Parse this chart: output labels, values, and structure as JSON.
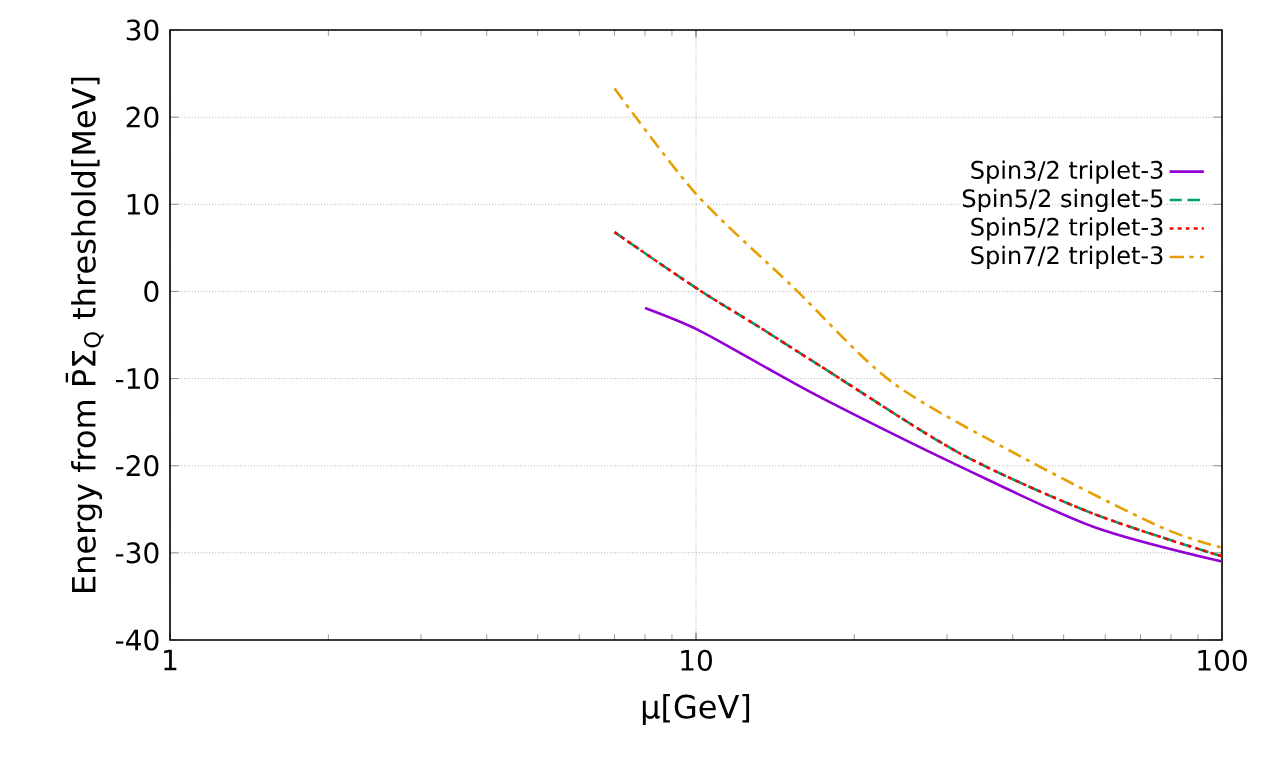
{
  "chart_data": {
    "type": "line",
    "xlabel": "μ[GeV]",
    "ylabel": "Energy from P̄Σ$_{Q}$ threshold[MeV]",
    "log": "x",
    "xlim": [
      1,
      100
    ],
    "xticks": [
      1,
      10,
      100
    ],
    "ylim": [
      -40,
      30
    ],
    "yticks": [
      -40,
      -30,
      -20,
      -10,
      0,
      10,
      20,
      30
    ],
    "grid": true,
    "legend": "right",
    "marker": "none",
    "series": [
      {
        "name": "Spin3/2 triplet-3",
        "color": "#9400d3",
        "line_style": "solid",
        "x": [
          8,
          10,
          13.2,
          17.7,
          31.8,
          56.9,
          100
        ],
        "values": [
          -1.9,
          -4.3,
          -8.3,
          -12.5,
          -20.1,
          -27,
          -31
        ]
      },
      {
        "name": "Spin5/2 singlet-5",
        "color": "#009e73",
        "line_style": "dashed",
        "x": [
          7,
          10,
          13.2,
          17.7,
          31.8,
          56.9,
          100
        ],
        "values": [
          6.8,
          0.4,
          -4.1,
          -9,
          -18.6,
          -25.5,
          -30.4
        ]
      },
      {
        "name": "Spin5/2 triplet-3",
        "color": "#ff0000",
        "line_style": "dotted",
        "x": [
          7,
          10,
          13.2,
          17.7,
          31.8,
          56.9,
          100
        ],
        "values": [
          6.8,
          0.4,
          -4.1,
          -9,
          -18.6,
          -25.5,
          -30.4
        ]
      },
      {
        "name": "Spin7/2 triplet-3",
        "color": "#e69f00",
        "line_style": "dashdot",
        "x": [
          7,
          10,
          15.3,
          23.7,
          42.5,
          76.2,
          100
        ],
        "values": [
          23.3,
          11.2,
          0.5,
          -10.5,
          -19.3,
          -27,
          -29.4
        ]
      }
    ]
  }
}
